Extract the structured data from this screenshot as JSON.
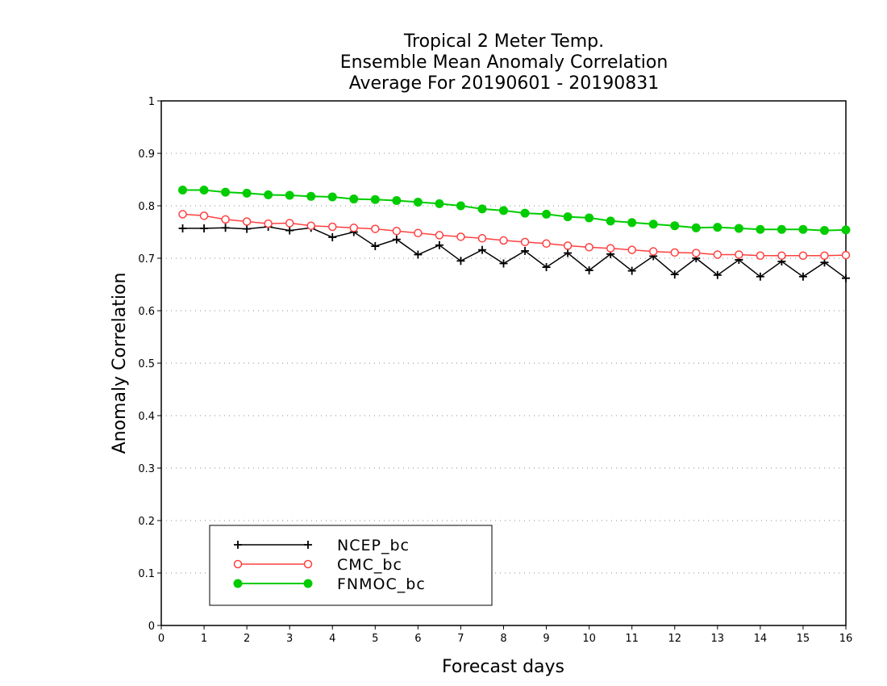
{
  "chart_data": {
    "type": "line",
    "title": [
      "Tropical 2 Meter Temp.",
      "Ensemble Mean Anomaly Correlation",
      "Average For 20190601 - 20190831"
    ],
    "xlabel": "Forecast days",
    "ylabel": "Anomaly Correlation",
    "xlim": [
      0,
      16
    ],
    "ylim": [
      0,
      1
    ],
    "xticks": [
      "0",
      "1",
      "2",
      "3",
      "4",
      "5",
      "6",
      "7",
      "8",
      "9",
      "10",
      "11",
      "12",
      "13",
      "14",
      "15",
      "16"
    ],
    "yticks": [
      "0",
      "0.1",
      "0.2",
      "0.3",
      "0.4",
      "0.5",
      "0.6",
      "0.7",
      "0.8",
      "0.9",
      "1"
    ],
    "grid": "horizontal dotted",
    "legend_position": "bottom-left",
    "x": [
      0.5,
      1,
      1.5,
      2,
      2.5,
      3,
      3.5,
      4,
      4.5,
      5,
      5.5,
      6,
      6.5,
      7,
      7.5,
      8,
      8.5,
      9,
      9.5,
      10,
      10.5,
      11,
      11.5,
      12,
      12.5,
      13,
      13.5,
      14,
      14.5,
      15,
      15.5,
      16
    ],
    "series": [
      {
        "name": "NCEP_bc",
        "color": "#000000",
        "marker": "plus",
        "values": [
          0.757,
          0.757,
          0.758,
          0.756,
          0.76,
          0.753,
          0.758,
          0.74,
          0.75,
          0.723,
          0.736,
          0.707,
          0.725,
          0.695,
          0.716,
          0.69,
          0.714,
          0.683,
          0.71,
          0.677,
          0.708,
          0.676,
          0.704,
          0.669,
          0.7,
          0.668,
          0.697,
          0.665,
          0.694,
          0.665,
          0.692,
          0.662
        ]
      },
      {
        "name": "CMC_bc",
        "color": "#ff4040",
        "marker": "open-circle",
        "values": [
          0.784,
          0.781,
          0.774,
          0.77,
          0.766,
          0.767,
          0.762,
          0.76,
          0.758,
          0.756,
          0.752,
          0.748,
          0.744,
          0.741,
          0.738,
          0.734,
          0.731,
          0.728,
          0.724,
          0.721,
          0.719,
          0.716,
          0.713,
          0.711,
          0.71,
          0.707,
          0.707,
          0.705,
          0.705,
          0.705,
          0.705,
          0.706
        ]
      },
      {
        "name": "FNMOC_bc",
        "color": "#00cc00",
        "marker": "filled-circle",
        "values": [
          0.83,
          0.83,
          0.826,
          0.824,
          0.821,
          0.82,
          0.818,
          0.817,
          0.813,
          0.812,
          0.81,
          0.807,
          0.804,
          0.8,
          0.794,
          0.791,
          0.786,
          0.784,
          0.779,
          0.777,
          0.771,
          0.768,
          0.765,
          0.762,
          0.758,
          0.759,
          0.757,
          0.755,
          0.755,
          0.755,
          0.753,
          0.754
        ]
      }
    ]
  }
}
